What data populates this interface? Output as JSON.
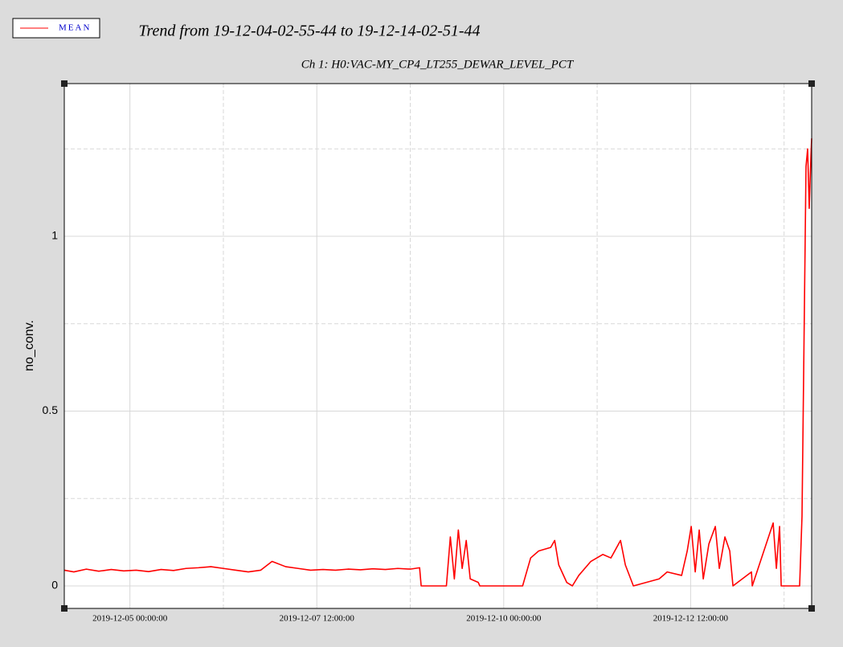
{
  "chart_data": {
    "type": "line",
    "title": "Trend from 19-12-04-02-55-44 to 19-12-14-02-51-44",
    "subtitle": "Ch 1: H0:VAC-MY_CP4_LT255_DEWAR_LEVEL_PCT",
    "y_label": "no_conv.",
    "legend": "top-left",
    "grid": true,
    "xlim": [
      "2019-12-04 02:55:44",
      "2019-12-14 02:51:44"
    ],
    "xticks": [
      "2019-12-05 00:00:00",
      "2019-12-07 12:00:00",
      "2019-12-10 00:00:00",
      "2019-12-12 12:00:00"
    ],
    "minor_xticks": [
      "2019-12-06 06:00:00",
      "2019-12-08 18:00:00",
      "2019-12-11 06:00:00",
      "2019-12-13 18:00:00"
    ],
    "ylim": [
      -0.0644,
      1.4368
    ],
    "yticks": [
      0,
      0.5,
      1
    ],
    "minor_yticks": [
      0.25,
      0.75,
      1.25
    ],
    "x": [
      "2019-12-04 02:55:44",
      "2019-12-04 06:00:00",
      "2019-12-04 10:00:00",
      "2019-12-04 14:00:00",
      "2019-12-04 18:00:00",
      "2019-12-04 22:00:00",
      "2019-12-05 02:00:00",
      "2019-12-05 06:00:00",
      "2019-12-05 10:00:00",
      "2019-12-05 14:00:00",
      "2019-12-05 18:00:00",
      "2019-12-05 22:00:00",
      "2019-12-06 02:00:00",
      "2019-12-06 06:00:00",
      "2019-12-06 10:00:00",
      "2019-12-06 14:00:00",
      "2019-12-06 18:00:00",
      "2019-12-06 21:38:00",
      "2019-12-07 02:00:00",
      "2019-12-07 06:00:00",
      "2019-12-07 10:00:00",
      "2019-12-07 14:00:00",
      "2019-12-07 18:00:00",
      "2019-12-07 22:00:00",
      "2019-12-08 02:00:00",
      "2019-12-08 06:00:00",
      "2019-12-08 10:00:00",
      "2019-12-08 14:00:00",
      "2019-12-08 18:00:00",
      "2019-12-08 21:00:00",
      "2019-12-08 21:30:00",
      "2019-12-09 05:36:00",
      "2019-12-09 06:52:00",
      "2019-12-09 08:09:00",
      "2019-12-09 09:26:00",
      "2019-12-09 10:40:00",
      "2019-12-09 11:58:00",
      "2019-12-09 13:15:00",
      "2019-12-09 15:50:00",
      "2019-12-09 16:20:00",
      "2019-12-10 06:04:00",
      "2019-12-10 08:39:00",
      "2019-12-10 11:14:00",
      "2019-12-10 15:05:00",
      "2019-12-10 16:22:00",
      "2019-12-10 17:40:00",
      "2019-12-10 20:14:00",
      "2019-12-10 22:02:00",
      "2019-12-11 00:06:00",
      "2019-12-11 03:58:00",
      "2019-12-11 07:50:00",
      "2019-12-11 10:25:00",
      "2019-12-11 13:30:00",
      "2019-12-11 15:03:00",
      "2019-12-11 17:38:00",
      "2019-12-12 01:54:00",
      "2019-12-12 04:29:00",
      "2019-12-12 09:07:00",
      "2019-12-12 10:55:00",
      "2019-12-12 12:12:00",
      "2019-12-12 13:29:00",
      "2019-12-12 14:46:00",
      "2019-12-12 16:04:00",
      "2019-12-12 17:52:00",
      "2019-12-12 19:56:00",
      "2019-12-12 21:13:00",
      "2019-12-12 23:01:00",
      "2019-12-13 00:34:00",
      "2019-12-13 01:36:00",
      "2019-12-13 07:32:00",
      "2019-12-13 07:48:00",
      "2019-12-13 14:30:00",
      "2019-12-13 15:32:00",
      "2019-12-13 16:34:00",
      "2019-12-13 17:05:00",
      "2019-12-13 23:00:00",
      "2019-12-13 23:46:00",
      "2019-12-14 00:17:00",
      "2019-12-14 01:03:00",
      "2019-12-14 01:34:00",
      "2019-12-14 02:05:00",
      "2019-12-14 02:36:00",
      "2019-12-14 02:51:44"
    ],
    "series": [
      {
        "name": "MEAN",
        "color": "#ff0000",
        "values": [
          0.045,
          0.04,
          0.048,
          0.042,
          0.047,
          0.043,
          0.045,
          0.041,
          0.047,
          0.044,
          0.05,
          0.052,
          0.055,
          0.05,
          0.045,
          0.04,
          0.045,
          0.07,
          0.055,
          0.05,
          0.045,
          0.047,
          0.045,
          0.048,
          0.046,
          0.049,
          0.047,
          0.05,
          0.048,
          0.052,
          0,
          0,
          0.14,
          0.02,
          0.16,
          0.05,
          0.13,
          0.02,
          0.01,
          0,
          0,
          0.08,
          0.1,
          0.11,
          0.13,
          0.06,
          0.01,
          0,
          0.03,
          0.07,
          0.09,
          0.08,
          0.13,
          0.06,
          0,
          0.02,
          0.04,
          0.03,
          0.1,
          0.17,
          0.04,
          0.16,
          0.02,
          0.12,
          0.17,
          0.05,
          0.14,
          0.1,
          0,
          0.04,
          0,
          0.18,
          0.05,
          0.17,
          0,
          0,
          0.2,
          0.6,
          1.2,
          1.25,
          1.08,
          1.22,
          1.28
        ]
      }
    ]
  }
}
